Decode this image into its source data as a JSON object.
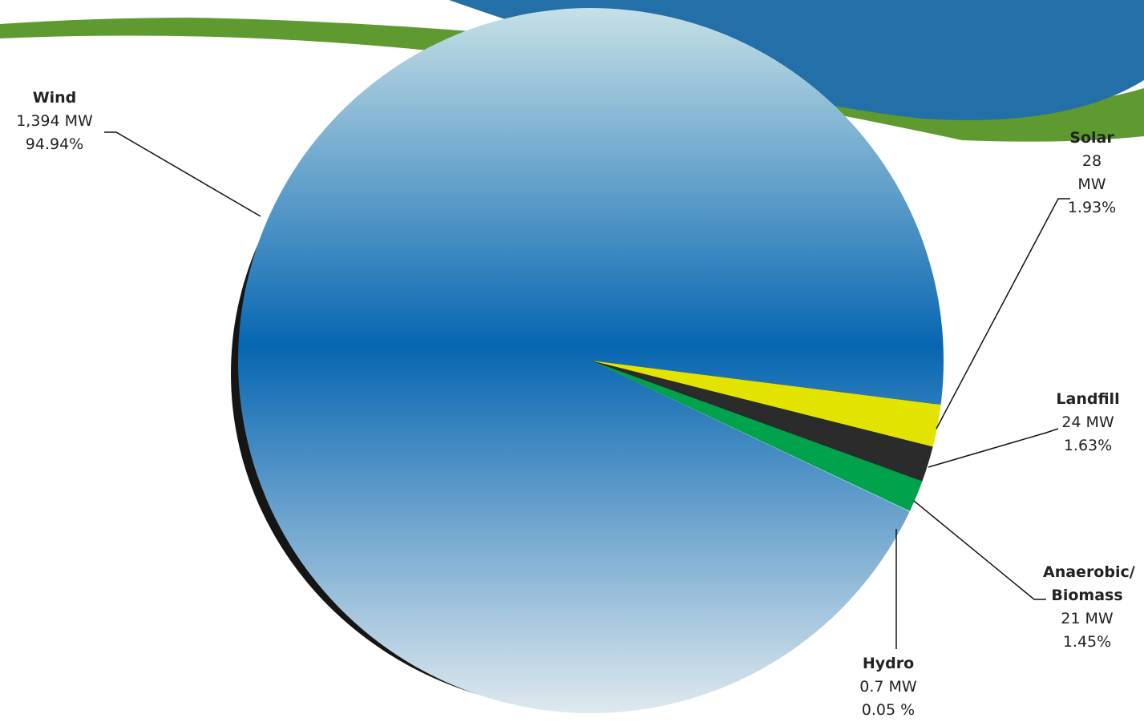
{
  "chart_data": {
    "type": "pie",
    "categories": [
      "Wind",
      "Solar",
      "Landfill",
      "Anaerobic/ Biomass",
      "Hydro"
    ],
    "values": [
      94.94,
      1.93,
      1.63,
      1.45,
      0.05
    ],
    "value_labels": [
      "94.94%",
      "1.93%",
      "1.63%",
      "1.45%",
      "0.05 %"
    ],
    "capacity": [
      1394,
      28,
      24,
      21,
      0.7
    ],
    "capacity_labels": [
      "1,394 MW",
      "28 MW",
      "24 MW",
      "21 MW",
      "0.7 MW"
    ],
    "colors": [
      "#0a66b0",
      "#e3e300",
      "#2b2b2b",
      "#00a24b",
      "#8fd0e0"
    ]
  }
}
